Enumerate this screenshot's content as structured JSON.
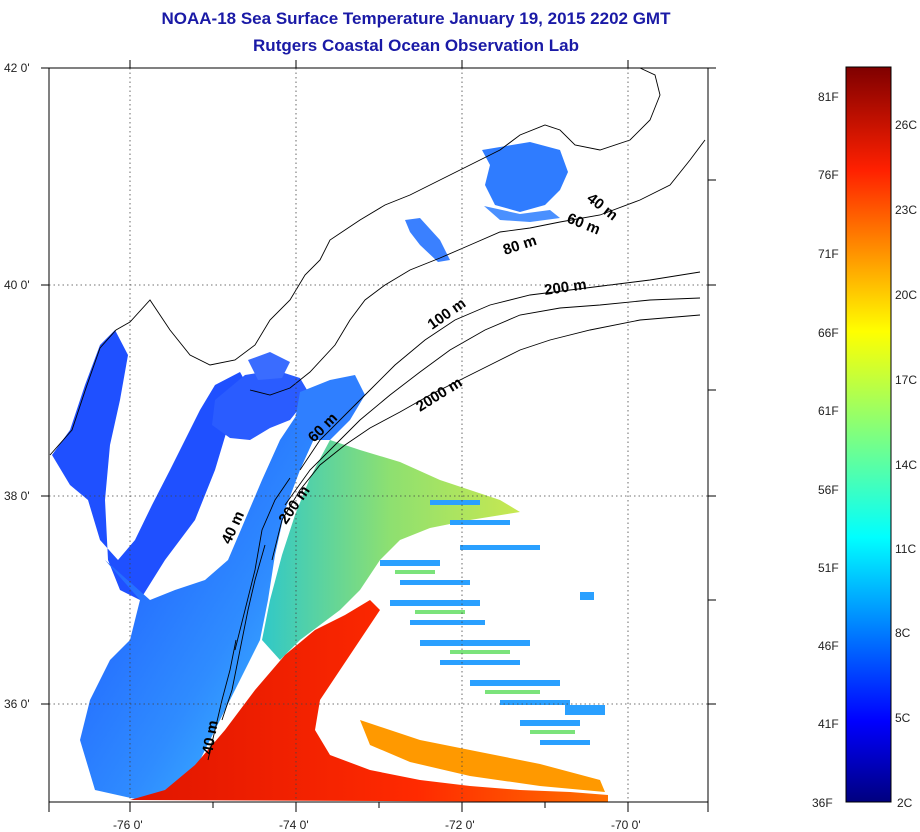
{
  "header": {
    "title": "NOAA-18 Sea Surface Temperature January 19, 2015 2202 GMT",
    "subtitle": "Rutgers Coastal Ocean Observation Lab"
  },
  "map": {
    "lat_ticks": [
      "42 0'",
      "40 0'",
      "38 0'",
      "36 0'"
    ],
    "lon_ticks": [
      "-76 0'",
      "-74 0'",
      "-72 0'",
      "-70 0'"
    ],
    "isobath_labels": [
      "40 m",
      "60 m",
      "80 m",
      "200 m",
      "100 m",
      "2000 m",
      "60 m",
      "200 m",
      "40 m",
      "40 m"
    ],
    "grid": "dotted"
  },
  "colorbar": {
    "fahrenheit_labels": [
      "81F",
      "76F",
      "71F",
      "66F",
      "61F",
      "56F",
      "51F",
      "46F",
      "41F",
      "36F"
    ],
    "celsius_labels": [
      "26C",
      "23C",
      "20C",
      "17C",
      "14C",
      "11C",
      "8C",
      "5C",
      "2C"
    ],
    "colormap": "jet",
    "colors": [
      "#00007f",
      "#0000ff",
      "#007fff",
      "#00ffff",
      "#7fff7f",
      "#ffff00",
      "#ff7f00",
      "#ff0000",
      "#7f0000"
    ]
  }
}
